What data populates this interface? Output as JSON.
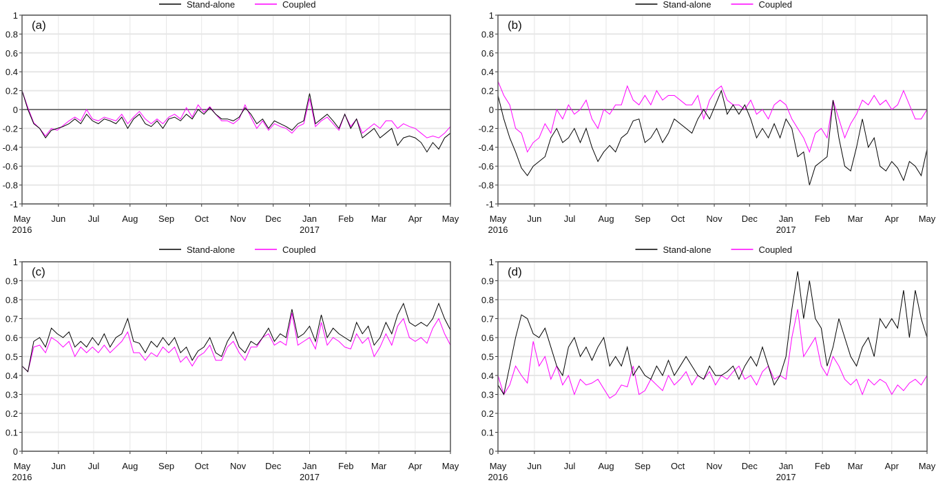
{
  "legend": {
    "standalone": "Stand-alone",
    "coupled": "Coupled"
  },
  "colors": {
    "standalone": "#000000",
    "coupled": "#ff00ff",
    "grid": "#e6e6e6",
    "zero": "#555555"
  },
  "x_ticks": [
    "May",
    "Jun",
    "Jul",
    "Aug",
    "Sep",
    "Oct",
    "Nov",
    "Dec",
    "Jan",
    "Feb",
    "Mar",
    "Apr",
    "May"
  ],
  "x_tick_days": [
    0,
    31,
    61,
    92,
    123,
    153,
    184,
    214,
    245,
    276,
    304,
    335,
    365
  ],
  "year_labels": [
    {
      "text": "2016",
      "day": 0
    },
    {
      "text": "2017",
      "day": 245
    }
  ],
  "chart_data": [
    {
      "type": "line",
      "panel_label": "(a)",
      "ylim": [
        -1,
        1
      ],
      "yticks": [
        "-1",
        "-0.8",
        "-0.6",
        "-0.4",
        "-0.2",
        "0",
        "0.2",
        "0.4",
        "0.6",
        "0.8",
        "1"
      ],
      "ytick_values": [
        -1,
        -0.8,
        -0.6,
        -0.4,
        -0.2,
        0,
        0.2,
        0.4,
        0.6,
        0.8,
        1
      ],
      "zero_line": true,
      "x_step_days": 5,
      "series": [
        {
          "name": "Stand-alone",
          "values": [
            0.2,
            0.0,
            -0.15,
            -0.2,
            -0.3,
            -0.22,
            -0.2,
            -0.18,
            -0.15,
            -0.1,
            -0.15,
            -0.05,
            -0.12,
            -0.15,
            -0.1,
            -0.12,
            -0.15,
            -0.08,
            -0.2,
            -0.1,
            -0.05,
            -0.15,
            -0.18,
            -0.12,
            -0.2,
            -0.1,
            -0.08,
            -0.12,
            -0.05,
            -0.1,
            0.0,
            -0.05,
            0.02,
            -0.05,
            -0.1,
            -0.1,
            -0.12,
            -0.08,
            0.02,
            -0.05,
            -0.15,
            -0.1,
            -0.2,
            -0.12,
            -0.15,
            -0.18,
            -0.22,
            -0.15,
            -0.12,
            0.17,
            -0.15,
            -0.1,
            -0.05,
            -0.12,
            -0.2,
            -0.05,
            -0.2,
            -0.1,
            -0.3,
            -0.25,
            -0.2,
            -0.3,
            -0.25,
            -0.2,
            -0.38,
            -0.3,
            -0.28,
            -0.3,
            -0.35,
            -0.45,
            -0.35,
            -0.42,
            -0.3,
            -0.25
          ]
        },
        {
          "name": "Coupled",
          "values": [
            0.2,
            0.02,
            -0.14,
            -0.2,
            -0.28,
            -0.2,
            -0.22,
            -0.17,
            -0.12,
            -0.08,
            -0.12,
            0.0,
            -0.1,
            -0.12,
            -0.08,
            -0.1,
            -0.12,
            -0.05,
            -0.15,
            -0.08,
            -0.02,
            -0.1,
            -0.15,
            -0.1,
            -0.15,
            -0.08,
            -0.05,
            -0.1,
            0.02,
            -0.08,
            0.05,
            -0.03,
            0.03,
            -0.05,
            -0.12,
            -0.12,
            -0.15,
            -0.1,
            0.05,
            -0.08,
            -0.2,
            -0.12,
            -0.22,
            -0.15,
            -0.18,
            -0.2,
            -0.25,
            -0.18,
            -0.15,
            0.12,
            -0.18,
            -0.12,
            -0.08,
            -0.15,
            -0.22,
            -0.05,
            -0.18,
            -0.1,
            -0.25,
            -0.2,
            -0.15,
            -0.2,
            -0.12,
            -0.12,
            -0.2,
            -0.15,
            -0.18,
            -0.2,
            -0.25,
            -0.3,
            -0.28,
            -0.3,
            -0.25,
            -0.18
          ]
        }
      ]
    },
    {
      "type": "line",
      "panel_label": "(b)",
      "ylim": [
        -1,
        1
      ],
      "yticks": [
        "-1",
        "-0.8",
        "-0.6",
        "-0.4",
        "-0.2",
        "0",
        "0.2",
        "0.4",
        "0.6",
        "0.8",
        "1"
      ],
      "ytick_values": [
        -1,
        -0.8,
        -0.6,
        -0.4,
        -0.2,
        0,
        0.2,
        0.4,
        0.6,
        0.8,
        1
      ],
      "zero_line": true,
      "x_step_days": 5,
      "series": [
        {
          "name": "Stand-alone",
          "values": [
            0.15,
            -0.1,
            -0.3,
            -0.45,
            -0.62,
            -0.7,
            -0.6,
            -0.55,
            -0.5,
            -0.3,
            -0.2,
            -0.35,
            -0.3,
            -0.2,
            -0.35,
            -0.2,
            -0.4,
            -0.55,
            -0.45,
            -0.38,
            -0.45,
            -0.3,
            -0.25,
            -0.12,
            -0.1,
            -0.35,
            -0.3,
            -0.2,
            -0.35,
            -0.25,
            -0.1,
            -0.15,
            -0.2,
            -0.25,
            -0.1,
            0.0,
            -0.1,
            0.05,
            0.2,
            -0.05,
            0.05,
            -0.05,
            0.05,
            -0.1,
            -0.3,
            -0.2,
            -0.3,
            -0.15,
            -0.3,
            -0.1,
            -0.2,
            -0.5,
            -0.45,
            -0.8,
            -0.6,
            -0.55,
            -0.5,
            0.1,
            -0.3,
            -0.6,
            -0.65,
            -0.4,
            -0.1,
            -0.4,
            -0.3,
            -0.6,
            -0.65,
            -0.55,
            -0.62,
            -0.75,
            -0.55,
            -0.6,
            -0.7,
            -0.42
          ]
        },
        {
          "name": "Coupled",
          "values": [
            0.3,
            0.15,
            0.05,
            -0.2,
            -0.25,
            -0.45,
            -0.35,
            -0.3,
            -0.15,
            -0.25,
            0.0,
            -0.1,
            0.05,
            -0.05,
            0.0,
            0.1,
            -0.1,
            -0.2,
            0.0,
            -0.05,
            0.05,
            0.05,
            0.25,
            0.1,
            0.05,
            0.15,
            0.05,
            0.2,
            0.1,
            0.15,
            0.15,
            0.1,
            0.05,
            0.05,
            0.15,
            -0.1,
            0.1,
            0.2,
            0.25,
            0.1,
            0.05,
            0.05,
            0.0,
            0.1,
            -0.05,
            0.0,
            -0.1,
            0.05,
            0.1,
            0.05,
            -0.1,
            -0.2,
            -0.3,
            -0.45,
            -0.25,
            -0.2,
            -0.3,
            0.1,
            -0.1,
            -0.3,
            -0.15,
            -0.05,
            0.1,
            0.05,
            0.15,
            0.05,
            0.1,
            0.0,
            0.05,
            0.2,
            0.05,
            -0.1,
            -0.1,
            0.0
          ]
        }
      ]
    },
    {
      "type": "line",
      "panel_label": "(c)",
      "ylim": [
        0,
        1
      ],
      "yticks": [
        "0",
        "0.1",
        "0.2",
        "0.3",
        "0.4",
        "0.5",
        "0.6",
        "0.7",
        "0.8",
        "0.9",
        "1"
      ],
      "ytick_values": [
        0,
        0.1,
        0.2,
        0.3,
        0.4,
        0.5,
        0.6,
        0.7,
        0.8,
        0.9,
        1
      ],
      "zero_line": false,
      "x_step_days": 5,
      "series": [
        {
          "name": "Stand-alone",
          "values": [
            0.45,
            0.42,
            0.58,
            0.6,
            0.55,
            0.65,
            0.62,
            0.6,
            0.63,
            0.55,
            0.58,
            0.55,
            0.6,
            0.56,
            0.62,
            0.55,
            0.6,
            0.62,
            0.7,
            0.58,
            0.57,
            0.52,
            0.58,
            0.55,
            0.6,
            0.56,
            0.6,
            0.52,
            0.55,
            0.48,
            0.53,
            0.55,
            0.6,
            0.52,
            0.5,
            0.58,
            0.63,
            0.55,
            0.52,
            0.58,
            0.56,
            0.6,
            0.65,
            0.58,
            0.62,
            0.6,
            0.75,
            0.6,
            0.62,
            0.66,
            0.58,
            0.72,
            0.6,
            0.65,
            0.62,
            0.6,
            0.58,
            0.68,
            0.62,
            0.66,
            0.56,
            0.6,
            0.68,
            0.62,
            0.72,
            0.78,
            0.68,
            0.66,
            0.68,
            0.66,
            0.7,
            0.78,
            0.7,
            0.64,
            0.62
          ]
        },
        {
          "name": "Coupled",
          "values": [
            0.45,
            0.42,
            0.55,
            0.56,
            0.52,
            0.6,
            0.58,
            0.55,
            0.58,
            0.5,
            0.55,
            0.52,
            0.55,
            0.52,
            0.56,
            0.52,
            0.55,
            0.58,
            0.63,
            0.52,
            0.52,
            0.48,
            0.52,
            0.5,
            0.55,
            0.52,
            0.55,
            0.47,
            0.5,
            0.45,
            0.5,
            0.52,
            0.56,
            0.48,
            0.48,
            0.55,
            0.58,
            0.52,
            0.48,
            0.55,
            0.55,
            0.6,
            0.62,
            0.56,
            0.58,
            0.56,
            0.73,
            0.56,
            0.58,
            0.6,
            0.54,
            0.68,
            0.56,
            0.6,
            0.58,
            0.55,
            0.54,
            0.62,
            0.57,
            0.6,
            0.5,
            0.55,
            0.62,
            0.56,
            0.66,
            0.7,
            0.6,
            0.58,
            0.6,
            0.57,
            0.65,
            0.7,
            0.62,
            0.56,
            0.55
          ]
        }
      ]
    },
    {
      "type": "line",
      "panel_label": "(d)",
      "ylim": [
        0,
        1
      ],
      "yticks": [
        "0",
        "0.1",
        "0.2",
        "0.3",
        "0.4",
        "0.5",
        "0.6",
        "0.7",
        "0.8",
        "0.9",
        "1"
      ],
      "ytick_values": [
        0,
        0.1,
        0.2,
        0.3,
        0.4,
        0.5,
        0.6,
        0.7,
        0.8,
        0.9,
        1
      ],
      "zero_line": false,
      "x_step_days": 5,
      "series": [
        {
          "name": "Stand-alone",
          "values": [
            0.35,
            0.3,
            0.45,
            0.6,
            0.72,
            0.7,
            0.62,
            0.6,
            0.65,
            0.55,
            0.45,
            0.4,
            0.55,
            0.6,
            0.5,
            0.55,
            0.48,
            0.55,
            0.6,
            0.45,
            0.5,
            0.45,
            0.55,
            0.4,
            0.45,
            0.4,
            0.38,
            0.45,
            0.4,
            0.48,
            0.4,
            0.45,
            0.5,
            0.45,
            0.4,
            0.38,
            0.45,
            0.4,
            0.4,
            0.42,
            0.45,
            0.38,
            0.45,
            0.5,
            0.45,
            0.55,
            0.45,
            0.35,
            0.4,
            0.5,
            0.75,
            0.95,
            0.7,
            0.9,
            0.7,
            0.65,
            0.45,
            0.55,
            0.7,
            0.6,
            0.5,
            0.45,
            0.55,
            0.6,
            0.5,
            0.7,
            0.65,
            0.7,
            0.65,
            0.85,
            0.6,
            0.85,
            0.7,
            0.6
          ]
        },
        {
          "name": "Coupled",
          "values": [
            0.4,
            0.3,
            0.35,
            0.45,
            0.4,
            0.36,
            0.58,
            0.45,
            0.5,
            0.38,
            0.45,
            0.35,
            0.4,
            0.3,
            0.38,
            0.35,
            0.36,
            0.38,
            0.33,
            0.28,
            0.3,
            0.35,
            0.34,
            0.45,
            0.3,
            0.32,
            0.38,
            0.35,
            0.32,
            0.4,
            0.35,
            0.38,
            0.42,
            0.35,
            0.4,
            0.38,
            0.42,
            0.35,
            0.4,
            0.38,
            0.42,
            0.45,
            0.38,
            0.4,
            0.35,
            0.42,
            0.45,
            0.38,
            0.4,
            0.38,
            0.6,
            0.75,
            0.5,
            0.55,
            0.6,
            0.45,
            0.4,
            0.5,
            0.45,
            0.38,
            0.35,
            0.38,
            0.3,
            0.38,
            0.35,
            0.38,
            0.36,
            0.3,
            0.35,
            0.32,
            0.36,
            0.38,
            0.35,
            0.4
          ]
        }
      ]
    }
  ]
}
